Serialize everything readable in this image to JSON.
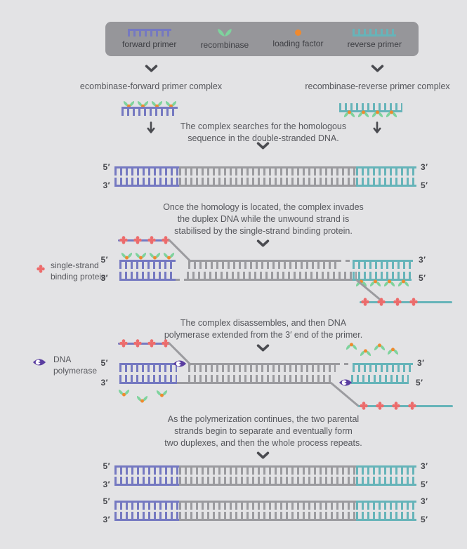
{
  "colors": {
    "purple": "#7579c1",
    "teal": "#66b4b9",
    "gray": "#9b9b9f",
    "green": "#7ed39d",
    "orange": "#ef8a2f",
    "red": "#ed6b6b",
    "poly": "#5a3da0",
    "legendbg": "#96969a",
    "bg": "#e3e3e5",
    "text": "#56575c",
    "arrow": "#4a4b50",
    "prime": "#47484d"
  },
  "legend": {
    "items": [
      {
        "label": "forward primer",
        "icon": "forward-primer-icon"
      },
      {
        "label": "recombinase",
        "icon": "recombinase-icon"
      },
      {
        "label": "loading factor",
        "icon": "loading-factor-icon"
      },
      {
        "label": "reverse primer",
        "icon": "reverse-primer-icon"
      }
    ]
  },
  "primes": {
    "five": "5′",
    "three": "3′"
  },
  "captions": {
    "forward_complex": "ecombinase-forward primer complex",
    "reverse_complex": "recombinase-reverse primer complex"
  },
  "steps": {
    "search": "The complex searches for the homologous\nsequence in the double-stranded DNA.",
    "invasion": "Once the homology is located, the complex invades\nthe duplex DNA while the unwound strand is\nstabilised by the single-strand binding protein.",
    "extension": "The complex disassembles, and then DNA\npolymerase extended from the 3′ end of the primer.",
    "separation": "As the polymerization continues, the two parental\nstrands begin to separate and eventually form\ntwo duplexes, and then the whole process repeats."
  },
  "side_legends": {
    "ssb": "single-strand\nbinding protein",
    "polymerase": "DNA\npolymerase"
  }
}
